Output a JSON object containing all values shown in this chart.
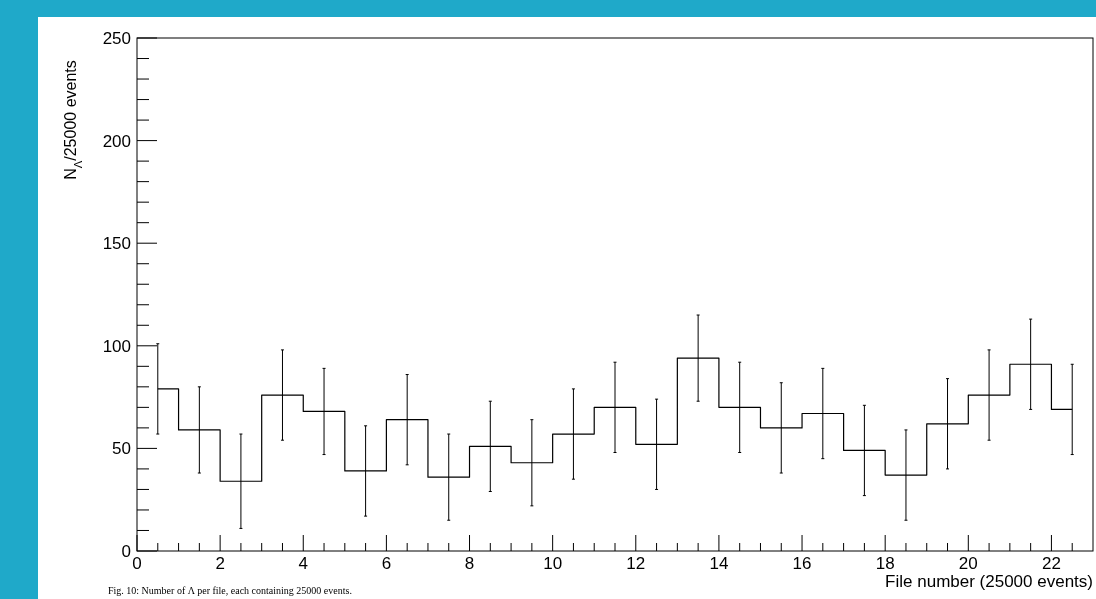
{
  "chart_data": {
    "type": "step",
    "xlabel": "File number (25000 events)",
    "ylabel": "N$_{Λ}$/25000 events",
    "annotations": [
      "Fig. 10: Number of Λ per file, each containing 25000 events."
    ],
    "x": [
      0.5,
      1.5,
      2.5,
      3.5,
      4.5,
      5.5,
      6.5,
      7.5,
      8.5,
      9.5,
      10.5,
      11.5,
      12.5,
      13.5,
      14.5,
      15.5,
      16.5,
      17.5,
      18.5,
      19.5,
      20.5,
      21.5,
      22.5
    ],
    "values": [
      79,
      59,
      34,
      76,
      68,
      39,
      64,
      36,
      51,
      43,
      57,
      70,
      52,
      94,
      70,
      60,
      67,
      49,
      37,
      62,
      76,
      91,
      69
    ],
    "errors": [
      22,
      21,
      23,
      22,
      21,
      22,
      22,
      21,
      22,
      21,
      22,
      22,
      22,
      21,
      22,
      22,
      22,
      22,
      22,
      22,
      22,
      22,
      22
    ],
    "color": "#000000",
    "xlim": [
      0,
      23
    ],
    "ylim": [
      0,
      250
    ],
    "xticks": [
      0,
      {
        "value": 0.5,
        "label": null
      },
      {
        "value": 1,
        "label": null
      },
      {
        "value": 1.5,
        "label": null
      },
      2,
      {
        "value": 2.5,
        "label": null
      },
      {
        "value": 3,
        "label": null
      },
      {
        "value": 3.5,
        "label": null
      },
      4,
      {
        "value": 4.5,
        "label": null
      },
      {
        "value": 5,
        "label": null
      },
      {
        "value": 5.5,
        "label": null
      },
      6,
      {
        "value": 6.5,
        "label": null
      },
      {
        "value": 7,
        "label": null
      },
      {
        "value": 7.5,
        "label": null
      },
      8,
      {
        "value": 8.5,
        "label": null
      },
      {
        "value": 9,
        "label": null
      },
      {
        "value": 9.5,
        "label": null
      },
      10,
      {
        "value": 10.5,
        "label": null
      },
      {
        "value": 11,
        "label": null
      },
      {
        "value": 11.5,
        "label": null
      },
      12,
      {
        "value": 12.5,
        "label": null
      },
      {
        "value": 13,
        "label": null
      },
      {
        "value": 13.5,
        "label": null
      },
      14,
      {
        "value": 14.5,
        "label": null
      },
      {
        "value": 15,
        "label": null
      },
      {
        "value": 15.5,
        "label": null
      },
      16,
      {
        "value": 16.5,
        "label": null
      },
      {
        "value": 17,
        "label": null
      },
      {
        "value": 17.5,
        "label": null
      },
      18,
      {
        "value": 18.5,
        "label": null
      },
      {
        "value": 19,
        "label": null
      },
      {
        "value": 19.5,
        "label": null
      },
      20,
      {
        "value": 20.5,
        "label": null
      },
      {
        "value": 21,
        "label": null
      },
      {
        "value": 21.5,
        "label": null
      },
      22,
      {
        "value": 22.5,
        "label": null
      }
    ],
    "yticks": [
      0,
      {
        "value": 10,
        "label": null
      },
      {
        "value": 20,
        "label": null
      },
      {
        "value": 30,
        "label": null
      },
      {
        "value": 40,
        "label": null
      },
      50,
      {
        "value": 60,
        "label": null
      },
      {
        "value": 70,
        "label": null
      },
      {
        "value": 80,
        "label": null
      },
      {
        "value": 90,
        "label": null
      },
      100,
      {
        "value": 110,
        "label": null
      },
      {
        "value": 120,
        "label": null
      },
      {
        "value": 130,
        "label": null
      },
      {
        "value": 140,
        "label": null
      },
      150,
      {
        "value": 160,
        "label": null
      },
      {
        "value": 170,
        "label": null
      },
      {
        "value": 180,
        "label": null
      },
      {
        "value": 190,
        "label": null
      },
      200,
      {
        "value": 210,
        "label": null
      },
      {
        "value": 220,
        "label": null
      },
      {
        "value": 230,
        "label": null
      },
      {
        "value": 240,
        "label": null
      },
      250
    ]
  }
}
